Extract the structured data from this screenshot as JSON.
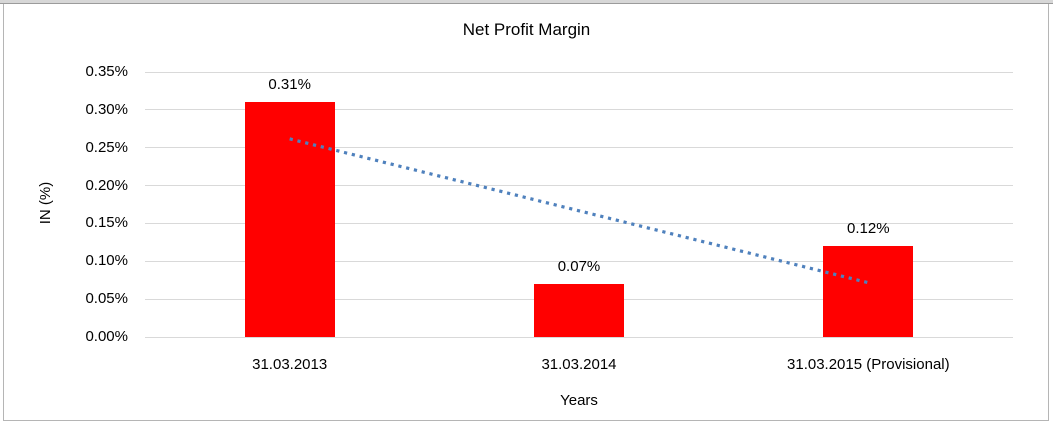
{
  "chart_data": {
    "type": "bar",
    "title": "Net Profit Margin",
    "xlabel": "Years",
    "ylabel": "IN (%)",
    "categories": [
      "31.03.2013",
      "31.03.2014",
      "31.03.2015 (Provisional)"
    ],
    "values": [
      0.31,
      0.07,
      0.12
    ],
    "data_labels": [
      "0.31%",
      "0.07%",
      "0.12%"
    ],
    "ylim": [
      0,
      0.35
    ],
    "ytick_step": 0.05,
    "ytick_labels": [
      "0.00%",
      "0.05%",
      "0.10%",
      "0.15%",
      "0.20%",
      "0.25%",
      "0.30%",
      "0.35%"
    ],
    "grid": true,
    "legend": "none",
    "bar_color": "#FF0000",
    "gridline_color": "#D9D9D9",
    "text_color": "#000000",
    "trendline": {
      "type": "linear",
      "style": "dotted",
      "color": "#4F81BD",
      "start_value": 0.2617,
      "end_value": 0.0717
    }
  }
}
